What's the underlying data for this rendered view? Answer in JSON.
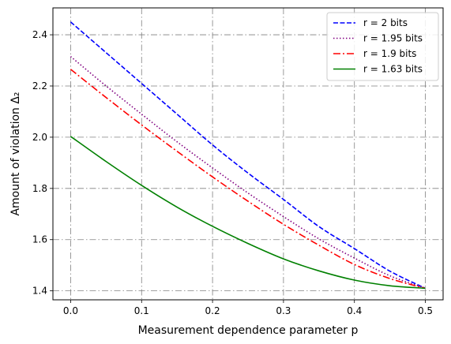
{
  "chart_data": {
    "type": "line",
    "title": "",
    "xlabel": "Measurement dependence parameter p",
    "ylabel": "Amount of violation Δ₂",
    "xlim": [
      -0.025,
      0.525
    ],
    "ylim": [
      1.365,
      2.505
    ],
    "xticks": [
      0.0,
      0.1,
      0.2,
      0.3,
      0.4,
      0.5
    ],
    "xtick_labels": [
      "0.0",
      "0.1",
      "0.2",
      "0.3",
      "0.4",
      "0.5"
    ],
    "yticks": [
      1.4,
      1.6,
      1.8,
      2.0,
      2.2,
      2.4
    ],
    "ytick_labels": [
      "1.4",
      "1.6",
      "1.8",
      "2.0",
      "2.2",
      "2.4"
    ],
    "grid": true,
    "legend_position": "top-right",
    "x": [
      0.0,
      0.05,
      0.1,
      0.15,
      0.2,
      0.25,
      0.3,
      0.35,
      0.4,
      0.45,
      0.5
    ],
    "series": [
      {
        "name": "r = 2 bits",
        "color": "#0000ff",
        "linestyle": "dashed",
        "values": [
          2.45,
          2.33,
          2.21,
          2.09,
          1.97,
          1.86,
          1.757,
          1.651,
          1.565,
          1.477,
          1.41
        ]
      },
      {
        "name": "r = 1.95 bits",
        "color": "#800080",
        "linestyle": "dotted",
        "values": [
          2.315,
          2.2,
          2.09,
          1.982,
          1.88,
          1.782,
          1.69,
          1.603,
          1.528,
          1.459,
          1.41
        ]
      },
      {
        "name": "r = 1.9 bits",
        "color": "#ff0000",
        "linestyle": "dashdot",
        "values": [
          2.265,
          2.155,
          2.048,
          1.945,
          1.845,
          1.75,
          1.66,
          1.578,
          1.503,
          1.448,
          1.41
        ]
      },
      {
        "name": "r = 1.63 bits",
        "color": "#008000",
        "linestyle": "solid",
        "values": [
          2.003,
          1.905,
          1.812,
          1.727,
          1.652,
          1.585,
          1.525,
          1.478,
          1.442,
          1.42,
          1.41
        ]
      }
    ]
  }
}
